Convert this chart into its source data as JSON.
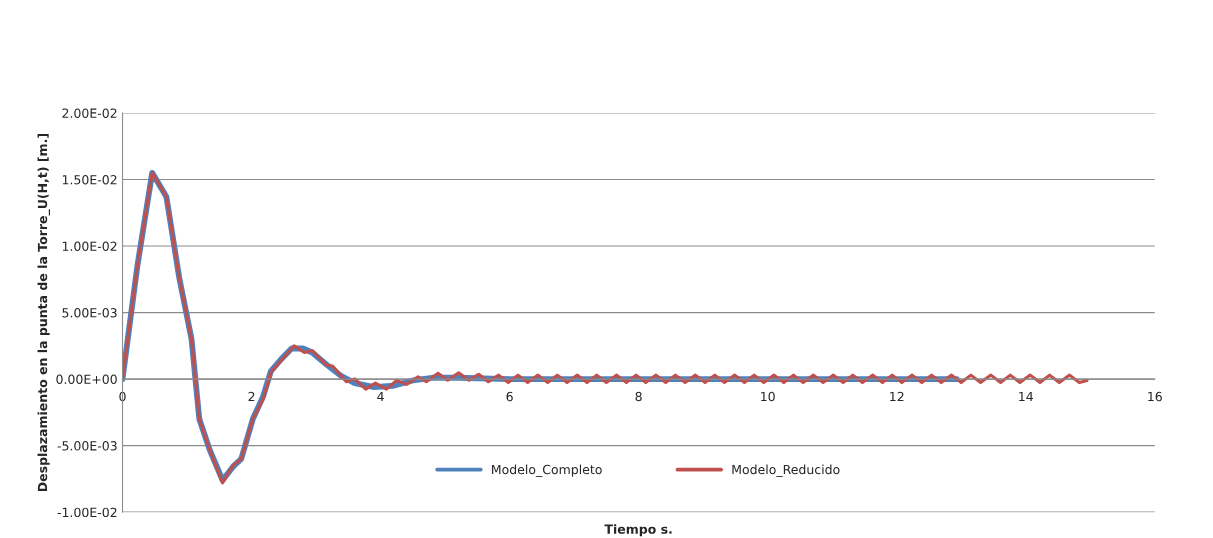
{
  "chart_data": {
    "type": "line",
    "xlabel": "Tiempo s.",
    "ylabel": "Desplazamiento en la punta de la Torre_U(H,t) [m.]",
    "xlim": [
      0,
      16
    ],
    "xticks": [
      0,
      2,
      4,
      6,
      8,
      10,
      12,
      14,
      16
    ],
    "ylim": [
      -0.01,
      0.02
    ],
    "yticks": [
      {
        "value": -0.01,
        "label": "-1.00E-02"
      },
      {
        "value": -0.005,
        "label": "-5.00E-03"
      },
      {
        "value": 0,
        "label": "0.00E+00"
      },
      {
        "value": 0.005,
        "label": "5.00E-03"
      },
      {
        "value": 0.01,
        "label": "1.00E-02"
      },
      {
        "value": 0.015,
        "label": "1.50E-02"
      },
      {
        "value": 0.02,
        "label": "2.00E-02"
      }
    ],
    "grid": "y",
    "legend": "bottom",
    "marker": "none",
    "line_style": "solid",
    "series": [
      {
        "name": "Modelo_Completo",
        "color": "#4f81bd",
        "x": [
          0,
          0.23,
          0.46,
          0.68,
          0.88,
          1.07,
          1.19,
          1.35,
          1.55,
          1.71,
          1.84,
          2.02,
          2.18,
          2.3,
          2.46,
          2.62,
          2.8,
          2.94,
          3.16,
          3.4,
          3.6,
          3.9,
          4.2,
          4.5,
          4.8,
          5.2,
          6,
          8,
          10,
          12.93
        ],
        "values": [
          0,
          0.0085,
          0.0155,
          0.0137,
          0.0076,
          0.003,
          -0.003,
          -0.0053,
          -0.0076,
          -0.0066,
          -0.006,
          -0.003,
          -0.0013,
          0.0006,
          0.0015,
          0.0023,
          0.0023,
          0.002,
          0.0011,
          0.0002,
          -0.0003,
          -0.0006,
          -0.0005,
          -0.0001,
          0.0001,
          0.0001,
          0,
          0,
          0,
          0
        ]
      },
      {
        "name": "Modelo_Reducido",
        "color": "#c0504d",
        "x": [
          0,
          0.23,
          0.46,
          0.68,
          0.88,
          1.07,
          1.19,
          1.35,
          1.55,
          1.71,
          1.84,
          2.02,
          2.18,
          2.3,
          2.46,
          2.66,
          2.82,
          2.94,
          3.16,
          3.26,
          3.47,
          3.6,
          3.77,
          3.92,
          4.09,
          4.25,
          4.4,
          4.58,
          4.71,
          4.89,
          5.04,
          5.21,
          5.37,
          5.52,
          5.67,
          5.83,
          5.98,
          6.13,
          6.28,
          6.44,
          6.59,
          6.74,
          6.89,
          7.05,
          7.2,
          7.35,
          7.5,
          7.66,
          7.81,
          7.96,
          8.11,
          8.27,
          8.42,
          8.57,
          8.72,
          8.88,
          9.03,
          9.18,
          9.33,
          9.49,
          9.64,
          9.79,
          9.94,
          10.1,
          10.25,
          10.4,
          10.55,
          10.71,
          10.86,
          11.02,
          11.17,
          11.32,
          11.47,
          11.63,
          11.78,
          11.93,
          12.08,
          12.24,
          12.39,
          12.54,
          12.69,
          12.85,
          13.0,
          13.15,
          13.3,
          13.46,
          13.61,
          13.76,
          13.91,
          14.07,
          14.22,
          14.37,
          14.52,
          14.68,
          14.83,
          14.95
        ],
        "values": [
          0,
          0.0085,
          0.0155,
          0.0137,
          0.0076,
          0.003,
          -0.003,
          -0.0053,
          -0.0078,
          -0.0065,
          -0.006,
          -0.003,
          -0.0015,
          0.0005,
          0.0014,
          0.0025,
          0.002,
          0.00215,
          0.00106,
          0.00096,
          -0.00019,
          2e-05,
          -0.00075,
          -0.0003,
          -0.00075,
          -0.0001,
          -0.0004,
          0.00017,
          -0.00019,
          0.00044,
          -8e-05,
          0.00048,
          -8e-05,
          0.00037,
          -0.0002,
          0.0003,
          -0.00025,
          0.0003,
          -0.00025,
          0.0003,
          -0.00025,
          0.0003,
          -0.00025,
          0.0003,
          -0.00025,
          0.0003,
          -0.00025,
          0.0003,
          -0.00025,
          0.0003,
          -0.00025,
          0.0003,
          -0.00025,
          0.0003,
          -0.00025,
          0.0003,
          -0.00025,
          0.0003,
          -0.00025,
          0.0003,
          -0.00025,
          0.0003,
          -0.00025,
          0.0003,
          -0.00025,
          0.0003,
          -0.00025,
          0.0003,
          -0.00025,
          0.0003,
          -0.00025,
          0.0003,
          -0.00025,
          0.0003,
          -0.00025,
          0.0003,
          -0.00025,
          0.0003,
          -0.00025,
          0.0003,
          -0.00025,
          0.0003,
          -0.00025,
          0.0003,
          -0.00025,
          0.0003,
          -0.00025,
          0.0003,
          -0.00025,
          0.0003,
          -0.00025,
          0.0003,
          -0.00025,
          0.0003,
          -0.00025,
          -0.0001
        ]
      }
    ]
  }
}
